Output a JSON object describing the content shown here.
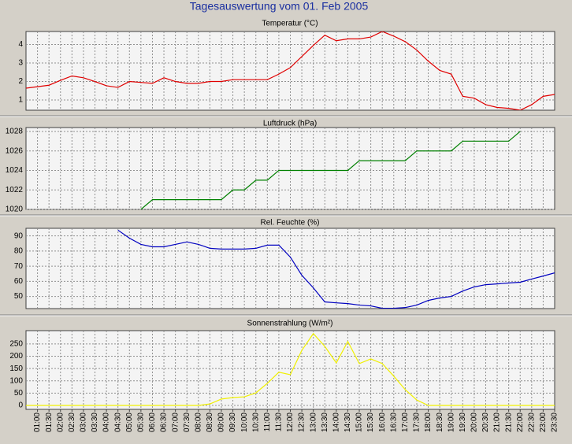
{
  "title": "Tagesauswertung vom 01. Feb 2005",
  "chart_data": [
    {
      "type": "line",
      "title": "Temperatur (°C)",
      "color": "#e00000",
      "ylim": [
        0.45,
        4.7
      ],
      "yticks": [
        1,
        2,
        3,
        4
      ],
      "grid": true,
      "values": [
        1.64,
        1.72,
        1.8,
        2.06,
        2.3,
        2.2,
        2.0,
        1.77,
        1.68,
        2.0,
        1.95,
        1.9,
        2.2,
        2.0,
        1.9,
        1.9,
        2.0,
        2.0,
        2.1,
        2.1,
        2.1,
        2.1,
        2.4,
        2.75,
        3.35,
        3.95,
        4.5,
        4.2,
        4.3,
        4.3,
        4.4,
        4.7,
        4.45,
        4.15,
        3.7,
        3.1,
        2.6,
        2.4,
        1.2,
        1.1,
        0.75,
        0.6,
        0.55,
        0.45,
        0.75,
        1.2,
        1.3
      ]
    },
    {
      "type": "line",
      "title": "Luftdruck (hPa)",
      "color": "#008000",
      "ylim": [
        1020,
        1028.4
      ],
      "yticks": [
        1020,
        1022,
        1024,
        1026,
        1028
      ],
      "grid": true,
      "values": [
        null,
        null,
        null,
        null,
        null,
        null,
        null,
        null,
        null,
        null,
        1020,
        1021,
        1021,
        1021,
        1021,
        1021,
        1021,
        1021,
        1022,
        1022,
        1023,
        1023,
        1024,
        1024,
        1024,
        1024,
        1024,
        1024,
        1024,
        1025,
        1025,
        1025,
        1025,
        1025,
        1026,
        1026,
        1026,
        1026,
        1027,
        1027,
        1027,
        1027,
        1027,
        1028,
        null,
        null,
        null
      ]
    },
    {
      "type": "line",
      "title": "Rel. Feuchte (%)",
      "color": "#0000c0",
      "ylim": [
        42,
        95
      ],
      "yticks": [
        50,
        60,
        70,
        80,
        90
      ],
      "grid": true,
      "values": [
        null,
        null,
        null,
        null,
        null,
        null,
        null,
        null,
        93.8,
        88.5,
        84.4,
        82.8,
        82.8,
        84.4,
        86,
        84.4,
        81.8,
        81.3,
        81.3,
        81.3,
        81.8,
        83.9,
        83.9,
        76,
        64,
        55.7,
        46.4,
        45.8,
        45.3,
        44.3,
        43.8,
        42.2,
        42.2,
        42.7,
        44.3,
        47.4,
        49,
        50,
        53.6,
        56.3,
        57.8,
        58.3,
        58.9,
        59.4,
        61.5,
        63.5,
        65.6
      ]
    },
    {
      "type": "line",
      "title": "Sonnenstrahlung (W/m²)",
      "color": "#f0f000",
      "ylim": [
        -16,
        304
      ],
      "yticks": [
        0,
        50,
        100,
        150,
        200,
        250
      ],
      "grid": true,
      "values": [
        0,
        0,
        0,
        0,
        0,
        0,
        0,
        0,
        0,
        0,
        0,
        0,
        0,
        0,
        0,
        0,
        6,
        26,
        32,
        35,
        51,
        90,
        135,
        125,
        224,
        292,
        240,
        173,
        260,
        170,
        189,
        170,
        119,
        64,
        22,
        0,
        0,
        0,
        0,
        0,
        0,
        0,
        0,
        0,
        0,
        0,
        0
      ],
      "categories": [
        null,
        "01:00",
        "01:30",
        "02:00",
        "02:30",
        "03:00",
        "03:30",
        "04:00",
        "04:30",
        "05:00",
        "05:30",
        "06:00",
        "06:30",
        "07:00",
        "07:30",
        "08:00",
        "08:30",
        "09:00",
        "09:30",
        "10:00",
        "10:30",
        "11:00",
        "11:30",
        "12:00",
        "12:30",
        "13:00",
        "13:30",
        "14:00",
        "14:30",
        "15:00",
        "15:30",
        "16:00",
        "16:30",
        "17:00",
        "17:30",
        "18:00",
        "18:30",
        "19:00",
        "19:30",
        "20:00",
        "20:30",
        "21:00",
        "21:30",
        "22:00",
        "22:30",
        "23:00",
        "23:30"
      ]
    }
  ]
}
